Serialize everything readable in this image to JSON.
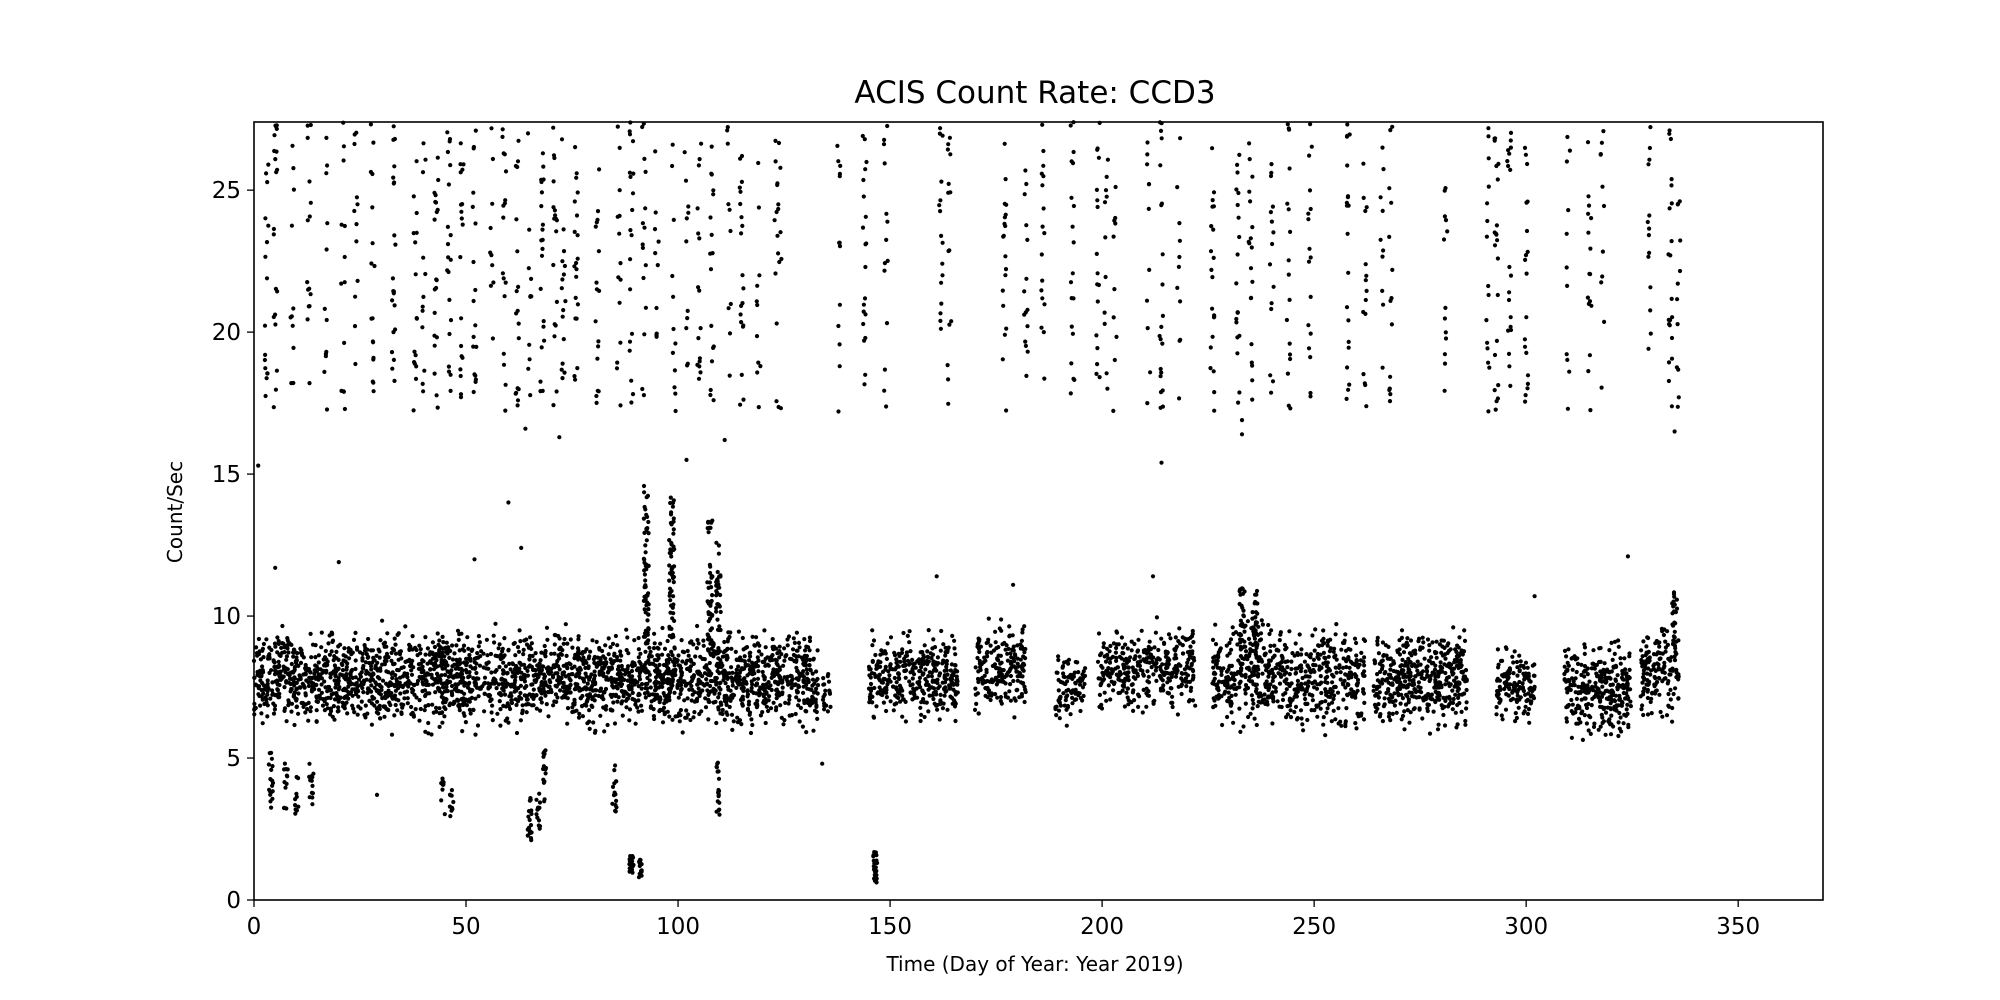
{
  "chart_data": {
    "type": "scatter",
    "title": "ACIS Count Rate: CCD3",
    "xlabel": "Time (Day of Year: Year 2019)",
    "ylabel": "Count/Sec",
    "xlim": [
      0,
      370
    ],
    "ylim": [
      0,
      27.4
    ],
    "xticks": [
      0,
      50,
      100,
      150,
      200,
      250,
      300,
      350
    ],
    "yticks": [
      0,
      5,
      10,
      15,
      20,
      25
    ],
    "grid": false,
    "legend": "none",
    "marker_color": "#000000",
    "series": [
      {
        "bands": [
          {
            "x": [
              0,
              133
            ],
            "y": [
              5.6,
              10.0
            ],
            "n": 2600
          },
          {
            "x": [
              134,
              136
            ],
            "y": [
              6.3,
              8.2
            ],
            "n": 20
          },
          {
            "x": [
              145,
              166
            ],
            "y": [
              5.9,
              9.8
            ],
            "n": 360
          },
          {
            "x": [
              170,
              182
            ],
            "y": [
              6.0,
              10.4
            ],
            "n": 200
          },
          {
            "x": [
              189,
              196
            ],
            "y": [
              5.8,
              9.0
            ],
            "n": 90
          },
          {
            "x": [
              199,
              222
            ],
            "y": [
              6.1,
              10.1
            ],
            "n": 340
          },
          {
            "x": [
              226,
              262
            ],
            "y": [
              5.6,
              10.2
            ],
            "n": 620
          },
          {
            "x": [
              264,
              286
            ],
            "y": [
              5.6,
              10.0
            ],
            "n": 440
          },
          {
            "x": [
              293,
              302
            ],
            "y": [
              5.9,
              9.2
            ],
            "n": 140
          },
          {
            "x": [
              309,
              325
            ],
            "y": [
              5.3,
              9.5
            ],
            "n": 320
          },
          {
            "x": [
              327,
              336
            ],
            "y": [
              6.0,
              10.0
            ],
            "n": 150
          }
        ],
        "spikes": [
          {
            "x": 92.5,
            "y": [
              9.0,
              14.6
            ],
            "n": 60
          },
          {
            "x": 98.5,
            "y": [
              9.2,
              14.2
            ],
            "n": 60
          },
          {
            "x": 107.5,
            "y": [
              9.0,
              13.4
            ],
            "n": 40
          },
          {
            "x": 109.5,
            "y": [
              9.5,
              12.6
            ],
            "n": 30
          },
          {
            "x": 233,
            "y": [
              8.5,
              11.1
            ],
            "n": 30
          },
          {
            "x": 236,
            "y": [
              8.5,
              11.0
            ],
            "n": 30
          },
          {
            "x": 335,
            "y": [
              8.0,
              11.0
            ],
            "n": 25
          }
        ],
        "dips": [
          {
            "x": 4,
            "y": [
              3.1,
              5.2
            ],
            "n": 18
          },
          {
            "x": 7.5,
            "y": [
              3.1,
              4.9
            ],
            "n": 12
          },
          {
            "x": 10,
            "y": [
              3.0,
              4.5
            ],
            "n": 10
          },
          {
            "x": 13.5,
            "y": [
              3.1,
              4.8
            ],
            "n": 14
          },
          {
            "x": 44.5,
            "y": [
              3.0,
              4.5
            ],
            "n": 10
          },
          {
            "x": 46.5,
            "y": [
              2.7,
              3.9
            ],
            "n": 10
          },
          {
            "x": 65,
            "y": [
              2.1,
              3.6
            ],
            "n": 20
          },
          {
            "x": 67,
            "y": [
              2.5,
              3.8
            ],
            "n": 15
          },
          {
            "x": 68.5,
            "y": [
              3.4,
              5.3
            ],
            "n": 16
          },
          {
            "x": 85,
            "y": [
              2.9,
              4.8
            ],
            "n": 15
          },
          {
            "x": 89,
            "y": [
              0.9,
              1.6
            ],
            "n": 24
          },
          {
            "x": 91,
            "y": [
              0.8,
              1.5
            ],
            "n": 16
          },
          {
            "x": 109.5,
            "y": [
              3.0,
              5.0
            ],
            "n": 18
          },
          {
            "x": 146.5,
            "y": [
              0.6,
              1.7
            ],
            "n": 24
          }
        ],
        "high_columns": [
          3,
          5,
          9,
          13,
          17,
          21,
          24,
          28,
          33,
          38,
          40,
          43,
          46,
          49,
          52,
          56,
          59,
          62,
          65,
          68,
          71,
          73,
          76,
          81,
          86,
          89,
          92,
          95,
          99,
          102,
          105,
          108,
          112,
          115,
          119,
          123,
          124,
          138,
          144,
          149,
          162,
          164,
          177,
          182,
          186,
          193,
          199,
          201,
          203,
          211,
          214,
          218,
          226,
          232,
          235,
          240,
          244,
          249,
          258,
          262,
          266,
          268,
          281,
          291,
          293,
          296,
          300,
          310,
          315,
          318,
          329,
          334,
          336
        ],
        "high_range": [
          17.2,
          27.4
        ],
        "outliers": [
          {
            "x": 1,
            "y": 15.3
          },
          {
            "x": 5,
            "y": 11.7
          },
          {
            "x": 20,
            "y": 11.9
          },
          {
            "x": 29,
            "y": 3.7
          },
          {
            "x": 52,
            "y": 12.0
          },
          {
            "x": 60,
            "y": 14.0
          },
          {
            "x": 63,
            "y": 12.4
          },
          {
            "x": 64,
            "y": 16.6
          },
          {
            "x": 72,
            "y": 16.3
          },
          {
            "x": 102,
            "y": 15.5
          },
          {
            "x": 111,
            "y": 16.2
          },
          {
            "x": 134,
            "y": 4.8
          },
          {
            "x": 161,
            "y": 11.4
          },
          {
            "x": 179,
            "y": 11.1
          },
          {
            "x": 212,
            "y": 11.4
          },
          {
            "x": 214,
            "y": 15.4
          },
          {
            "x": 233,
            "y": 16.4
          },
          {
            "x": 233,
            "y": 16.9
          },
          {
            "x": 302,
            "y": 10.7
          },
          {
            "x": 324,
            "y": 12.1
          },
          {
            "x": 335,
            "y": 16.5
          }
        ]
      }
    ]
  }
}
